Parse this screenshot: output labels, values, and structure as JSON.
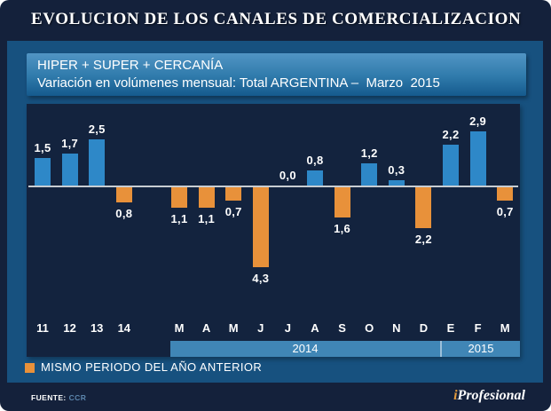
{
  "header": {
    "title": "EVOLUCION DE LOS CANALES DE COMERCIALIZACION"
  },
  "subtitle": {
    "line1": "HIPER + SUPER + CERCANÍA",
    "line2": "Variación en volúmenes mensual: Total ARGENTINA –  Marzo  2015"
  },
  "chart_data": {
    "type": "bar",
    "title": "HIPER + SUPER + CERCANÍA — Variación en volúmenes mensual: Total ARGENTINA — Marzo 2015",
    "categories": [
      "11",
      "12",
      "13",
      "14",
      "M",
      "A",
      "M",
      "J",
      "J",
      "A",
      "S",
      "O",
      "N",
      "D",
      "E",
      "F",
      "M"
    ],
    "values": [
      1.5,
      1.7,
      2.5,
      -0.8,
      -1.1,
      -1.1,
      -0.7,
      -4.3,
      0.0,
      0.8,
      -1.6,
      1.2,
      0.3,
      -2.2,
      2.2,
      2.9,
      -0.7
    ],
    "value_labels": [
      "1,5",
      "1,7",
      "2,5",
      "0,8",
      "1,1",
      "1,1",
      "0,7",
      "4,3",
      "0,0",
      "0,8",
      "1,6",
      "1,2",
      "0,3",
      "2,2",
      "2,2",
      "2,9",
      "0,7"
    ],
    "bar_colors": {
      "positive": "#2e88c8",
      "negative": "#e8913a"
    },
    "ylim": [
      -4.6,
      3.2
    ],
    "grid": false,
    "group_gap_after_index": 3,
    "year_bands": [
      {
        "label": "2014",
        "start_index": 4,
        "end_index": 13
      },
      {
        "label": "2015",
        "start_index": 14,
        "end_index": 16
      }
    ],
    "legend_position": "bottom-left"
  },
  "legend": {
    "label": "MISMO PERIODO DEL AÑO ANTERIOR",
    "color": "#e8913a"
  },
  "footer": {
    "source_label": "FUENTE:",
    "source_value": "CCR",
    "brand_i": "i",
    "brand_rest": "Profesional"
  }
}
